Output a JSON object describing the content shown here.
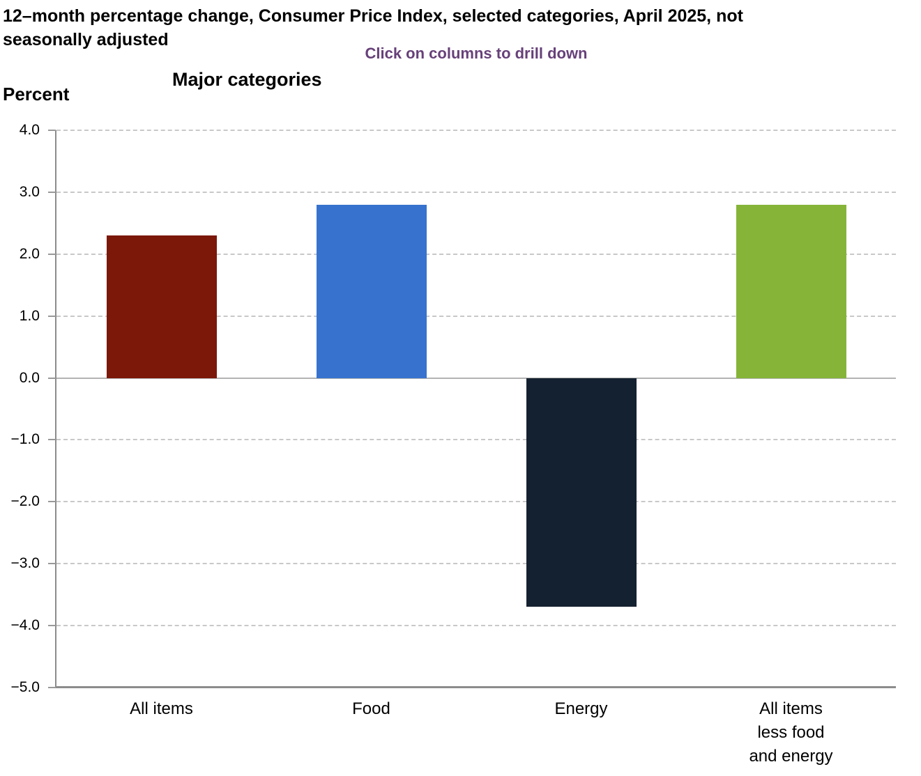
{
  "header": {
    "title_lines": [
      "12–month percentage change, Consumer Price Index, selected categories, April 2025, not",
      "seasonally adjusted"
    ],
    "subtitle": "Click on columns to drill down",
    "chart_title": "Major categories",
    "axis_unit_label": "Percent"
  },
  "colors": {
    "subtitle_text": "#67417A",
    "gridline": "#C8C8C8",
    "zero_line": "#B3B3B3",
    "axis_line": "#8C8C8C",
    "tick_mark": "#999999",
    "text": "#000000"
  },
  "chart_data": {
    "type": "bar",
    "title": "Major categories",
    "ylabel": "Percent",
    "categories": [
      "All items",
      "Food",
      "Energy",
      "All items less food and energy"
    ],
    "categories_display": [
      [
        "All items"
      ],
      [
        "Food"
      ],
      [
        "Energy"
      ],
      [
        "All items",
        "less food",
        "and energy"
      ]
    ],
    "values": [
      2.3,
      2.8,
      -3.7,
      2.8
    ],
    "bar_colors": [
      "#7B1809",
      "#3773CE",
      "#142130",
      "#86B438"
    ],
    "ylim": [
      -5.0,
      4.0
    ],
    "ytick_interval": 1.0,
    "ytick_labels": [
      "4.0",
      "3.0",
      "2.0",
      "1.0",
      "0.0",
      "−1.0",
      "−2.0",
      "−3.0",
      "−4.0",
      "−5.0"
    ],
    "grid": "horizontal-dashed",
    "legend": "none"
  }
}
